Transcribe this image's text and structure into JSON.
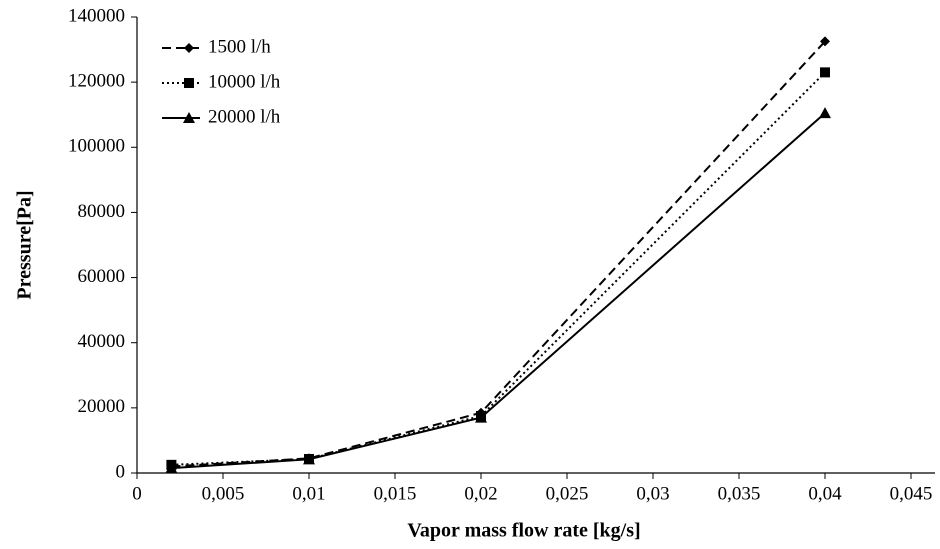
{
  "chart_data": {
    "type": "line",
    "xlabel": "Vapor mass flow rate [kg/s]",
    "ylabel": "Pressure[Pa]",
    "x": [
      0.002,
      0.01,
      0.02,
      0.04
    ],
    "series": [
      {
        "name": "1500 l/h",
        "color": "#000000",
        "dash": "dashed",
        "marker": "diamond",
        "values": [
          2000,
          4500,
          18500,
          132500
        ]
      },
      {
        "name": "10000 l/h",
        "color": "#000000",
        "dash": "dotted",
        "marker": "square",
        "values": [
          2500,
          4300,
          17500,
          123000
        ]
      },
      {
        "name": "20000 l/h",
        "color": "#000000",
        "dash": "solid",
        "marker": "triangle",
        "values": [
          1500,
          4200,
          17000,
          110500
        ]
      }
    ],
    "xlim": [
      0,
      0.045
    ],
    "xticks": [
      0,
      {
        "value": 0.005,
        "label": "0,005"
      },
      {
        "value": 0.01,
        "label": "0,01"
      },
      {
        "value": 0.015,
        "label": "0,015"
      },
      {
        "value": 0.02,
        "label": "0,02"
      },
      {
        "value": 0.025,
        "label": "0,025"
      },
      {
        "value": 0.03,
        "label": "0,03"
      },
      {
        "value": 0.035,
        "label": "0,035"
      },
      {
        "value": 0.04,
        "label": "0,04"
      },
      {
        "value": 0.045,
        "label": "0,045"
      }
    ],
    "ylim": [
      0,
      140000
    ],
    "yticks": [
      0,
      20000,
      40000,
      60000,
      80000,
      100000,
      120000,
      140000
    ],
    "grid": false,
    "legend": "upper left"
  }
}
